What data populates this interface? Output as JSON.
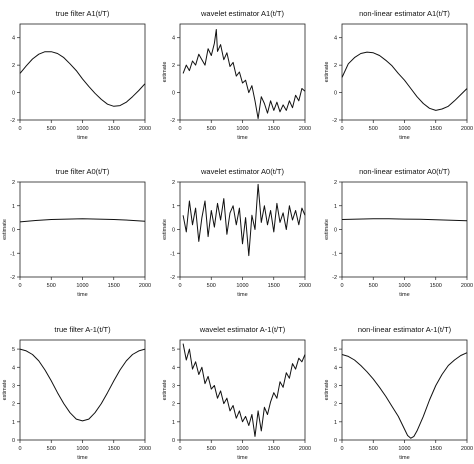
{
  "chart_data": [
    {
      "type": "line",
      "title": "true filter A1(t/T)",
      "xlabel": "time",
      "ylabel": "",
      "xlim": [
        0,
        2000
      ],
      "ylim": [
        -2,
        5
      ],
      "x_ticks": [
        0,
        500,
        1000,
        1500,
        2000
      ],
      "y_ticks": [
        -2,
        0,
        2,
        4
      ],
      "series": [
        {
          "x": [
            0,
            100,
            200,
            300,
            400,
            500,
            600,
            700,
            800,
            900,
            1000,
            1100,
            1200,
            1300,
            1400,
            1500,
            1600,
            1700,
            1800,
            1900,
            2000
          ],
          "values": [
            1.4,
            1.95,
            2.45,
            2.8,
            2.98,
            2.98,
            2.85,
            2.55,
            2.1,
            1.6,
            1.0,
            0.45,
            -0.05,
            -0.5,
            -0.85,
            -1.0,
            -0.95,
            -0.7,
            -0.3,
            0.15,
            0.65
          ]
        }
      ]
    },
    {
      "type": "line",
      "title": "wavelet estimator A1(t/T)",
      "xlabel": "time",
      "ylabel": "estimate",
      "xlim": [
        0,
        2000
      ],
      "ylim": [
        -2,
        5
      ],
      "x_ticks": [
        0,
        500,
        1000,
        1500,
        2000
      ],
      "y_ticks": [
        -2,
        0,
        2,
        4
      ],
      "series": [
        {
          "x": [
            50,
            100,
            150,
            200,
            250,
            300,
            350,
            400,
            450,
            500,
            550,
            580,
            600,
            650,
            700,
            750,
            800,
            850,
            900,
            950,
            1000,
            1050,
            1100,
            1150,
            1200,
            1250,
            1300,
            1350,
            1400,
            1450,
            1500,
            1550,
            1600,
            1650,
            1700,
            1750,
            1800,
            1850,
            1900,
            1950,
            2000
          ],
          "values": [
            1.4,
            2.0,
            1.6,
            2.3,
            2.0,
            2.8,
            2.4,
            2.0,
            3.2,
            2.7,
            3.6,
            4.6,
            3.0,
            3.5,
            2.4,
            2.9,
            1.9,
            2.2,
            1.2,
            1.5,
            0.7,
            0.9,
            0.0,
            0.5,
            -0.6,
            -1.9,
            -0.3,
            -0.8,
            -1.5,
            -0.6,
            -1.3,
            -0.7,
            -1.4,
            -0.9,
            -1.3,
            -0.6,
            -1.1,
            -0.2,
            -0.6,
            0.3,
            0.1
          ]
        }
      ]
    },
    {
      "type": "line",
      "title": "non-linear estimator A1(t/T)",
      "xlabel": "time",
      "ylabel": "estimate",
      "xlim": [
        0,
        2000
      ],
      "ylim": [
        -2,
        5
      ],
      "x_ticks": [
        0,
        500,
        1000,
        1500,
        2000
      ],
      "y_ticks": [
        -2,
        0,
        2,
        4
      ],
      "series": [
        {
          "x": [
            0,
            100,
            200,
            300,
            400,
            500,
            600,
            700,
            800,
            900,
            1000,
            1100,
            1200,
            1300,
            1400,
            1500,
            1600,
            1700,
            1800,
            1900,
            2000
          ],
          "values": [
            1.1,
            2.1,
            2.55,
            2.85,
            2.95,
            2.9,
            2.7,
            2.35,
            1.95,
            1.4,
            0.9,
            0.3,
            -0.3,
            -0.8,
            -1.15,
            -1.3,
            -1.2,
            -1.0,
            -0.6,
            -0.15,
            0.3
          ]
        }
      ]
    },
    {
      "type": "line",
      "title": "true filter A0(t/T)",
      "xlabel": "time",
      "ylabel": "estimate",
      "xlim": [
        0,
        2000
      ],
      "ylim": [
        -2,
        2
      ],
      "x_ticks": [
        0,
        500,
        1000,
        1500,
        2000
      ],
      "y_ticks": [
        -2,
        -1,
        0,
        1,
        2
      ],
      "series": [
        {
          "x": [
            0,
            250,
            500,
            750,
            1000,
            1250,
            1500,
            1750,
            2000
          ],
          "values": [
            0.32,
            0.38,
            0.42,
            0.44,
            0.45,
            0.44,
            0.42,
            0.39,
            0.35
          ]
        }
      ]
    },
    {
      "type": "line",
      "title": "wavelet estimator A0(t/T)",
      "xlabel": "time",
      "ylabel": "estimate",
      "xlim": [
        0,
        2000
      ],
      "ylim": [
        -2,
        2
      ],
      "x_ticks": [
        0,
        500,
        1000,
        1500,
        2000
      ],
      "y_ticks": [
        -2,
        -1,
        0,
        1,
        2
      ],
      "series": [
        {
          "x": [
            50,
            100,
            150,
            200,
            250,
            300,
            350,
            400,
            450,
            500,
            550,
            600,
            650,
            700,
            750,
            800,
            850,
            900,
            950,
            1000,
            1050,
            1100,
            1150,
            1200,
            1250,
            1300,
            1350,
            1400,
            1450,
            1500,
            1550,
            1600,
            1650,
            1700,
            1750,
            1800,
            1850,
            1900,
            1950,
            2000
          ],
          "values": [
            0.6,
            -0.1,
            1.2,
            0.2,
            0.9,
            -0.5,
            0.5,
            1.2,
            -0.3,
            0.8,
            0.1,
            1.1,
            0.4,
            1.3,
            -0.2,
            0.7,
            1.0,
            0.2,
            0.9,
            -0.6,
            0.5,
            -1.1,
            0.6,
            0.0,
            1.9,
            0.3,
            1.0,
            0.2,
            0.8,
            -0.1,
            1.1,
            0.3,
            0.7,
            0.0,
            1.0,
            0.4,
            0.8,
            0.2,
            0.9,
            0.6
          ]
        }
      ]
    },
    {
      "type": "line",
      "title": "non-linear estimator A0(t/T)",
      "xlabel": "time",
      "ylabel": "estimate",
      "xlim": [
        0,
        2000
      ],
      "ylim": [
        -2,
        2
      ],
      "x_ticks": [
        0,
        500,
        1000,
        1500,
        2000
      ],
      "y_ticks": [
        -2,
        -1,
        0,
        1,
        2
      ],
      "series": [
        {
          "x": [
            0,
            250,
            500,
            750,
            1000,
            1250,
            1500,
            1750,
            2000
          ],
          "values": [
            0.42,
            0.44,
            0.45,
            0.45,
            0.44,
            0.43,
            0.41,
            0.39,
            0.37
          ]
        }
      ]
    },
    {
      "type": "line",
      "title": "true filter A-1(t/T)",
      "xlabel": "time",
      "ylabel": "estimate",
      "xlim": [
        0,
        2000
      ],
      "ylim": [
        0,
        5.5
      ],
      "x_ticks": [
        0,
        500,
        1000,
        1500,
        2000
      ],
      "y_ticks": [
        0,
        1,
        2,
        3,
        4,
        5
      ],
      "series": [
        {
          "x": [
            0,
            100,
            200,
            300,
            400,
            500,
            600,
            700,
            800,
            900,
            1000,
            1100,
            1200,
            1300,
            1400,
            1500,
            1600,
            1700,
            1800,
            1900,
            2000
          ],
          "values": [
            5.0,
            4.9,
            4.7,
            4.35,
            3.85,
            3.25,
            2.6,
            2.0,
            1.5,
            1.15,
            1.05,
            1.15,
            1.5,
            2.0,
            2.6,
            3.25,
            3.85,
            4.35,
            4.7,
            4.9,
            5.0
          ]
        }
      ]
    },
    {
      "type": "line",
      "title": "wavelet estimator A-1(t/T)",
      "xlabel": "time",
      "ylabel": "estimate",
      "xlim": [
        0,
        2000
      ],
      "ylim": [
        0,
        5.5
      ],
      "x_ticks": [
        0,
        500,
        1000,
        1500,
        2000
      ],
      "y_ticks": [
        0,
        1,
        2,
        3,
        4,
        5
      ],
      "series": [
        {
          "x": [
            50,
            100,
            150,
            200,
            250,
            300,
            350,
            400,
            450,
            500,
            550,
            600,
            650,
            700,
            750,
            800,
            850,
            900,
            950,
            1000,
            1050,
            1100,
            1150,
            1200,
            1250,
            1300,
            1350,
            1400,
            1450,
            1500,
            1550,
            1600,
            1650,
            1700,
            1750,
            1800,
            1850,
            1900,
            1950,
            2000
          ],
          "values": [
            5.3,
            4.4,
            5.0,
            3.9,
            4.3,
            3.6,
            4.0,
            3.1,
            3.5,
            2.8,
            3.0,
            2.3,
            2.7,
            2.0,
            2.3,
            1.6,
            1.9,
            1.2,
            1.6,
            1.0,
            1.3,
            0.8,
            1.4,
            0.2,
            1.6,
            0.5,
            1.8,
            1.4,
            2.1,
            2.6,
            2.3,
            3.2,
            2.9,
            3.7,
            3.4,
            4.2,
            3.9,
            4.5,
            4.3,
            4.7
          ]
        }
      ]
    },
    {
      "type": "line",
      "title": "non-linear estimator A-1(t/T)",
      "xlabel": "time",
      "ylabel": "estimate",
      "xlim": [
        0,
        2000
      ],
      "ylim": [
        0,
        5.5
      ],
      "x_ticks": [
        0,
        500,
        1000,
        1500,
        2000
      ],
      "y_ticks": [
        0,
        1,
        2,
        3,
        4,
        5
      ],
      "series": [
        {
          "x": [
            0,
            100,
            200,
            300,
            400,
            500,
            600,
            700,
            800,
            900,
            1000,
            1050,
            1100,
            1150,
            1200,
            1300,
            1400,
            1500,
            1600,
            1700,
            1800,
            1900,
            2000
          ],
          "values": [
            4.7,
            4.6,
            4.4,
            4.1,
            3.75,
            3.35,
            2.9,
            2.4,
            1.85,
            1.3,
            0.6,
            0.25,
            0.1,
            0.2,
            0.5,
            1.3,
            2.2,
            3.0,
            3.6,
            4.1,
            4.4,
            4.65,
            4.8
          ]
        }
      ]
    }
  ]
}
